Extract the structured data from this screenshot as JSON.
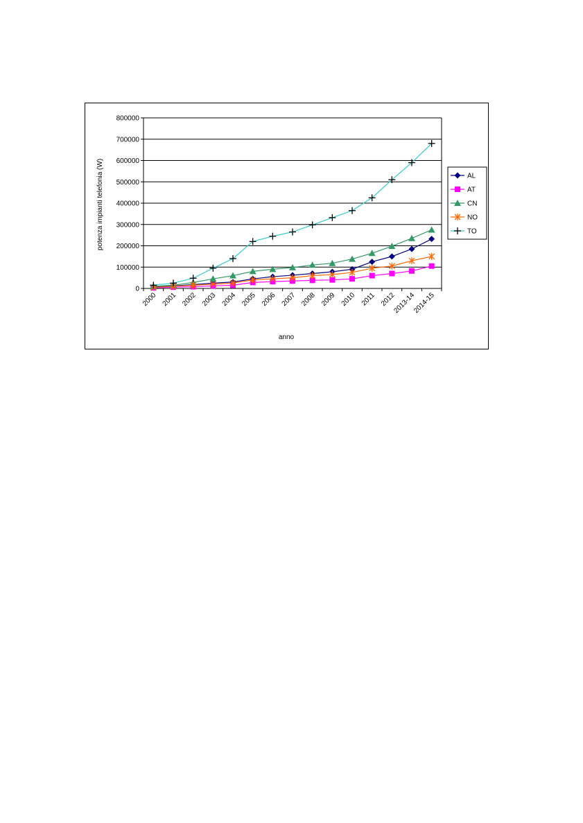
{
  "chart_data": {
    "type": "line",
    "title": "",
    "xlabel": "anno",
    "ylabel": "potenza impianti telefonia (W)",
    "categories": [
      "2000",
      "2001",
      "2002",
      "2003",
      "2004",
      "2005",
      "2006",
      "2007",
      "2008",
      "2009",
      "2010",
      "2011",
      "2012",
      "2013-14",
      "2014-15"
    ],
    "ylim": [
      0,
      800000
    ],
    "yticks": [
      "0",
      "100000",
      "200000",
      "300000",
      "400000",
      "500000",
      "600000",
      "700000",
      "800000"
    ],
    "grid": true,
    "legend_position": "right",
    "series": [
      {
        "name": "AL",
        "color": "#000080",
        "marker": "diamond",
        "values": [
          8000,
          12000,
          18000,
          25000,
          30000,
          45000,
          55000,
          62000,
          70000,
          78000,
          90000,
          125000,
          150000,
          185000,
          232000
        ]
      },
      {
        "name": "AT",
        "color": "#ff00ff",
        "marker": "square",
        "values": [
          3000,
          6000,
          8000,
          12000,
          15000,
          28000,
          32000,
          35000,
          38000,
          40000,
          45000,
          60000,
          70000,
          82000,
          105000
        ]
      },
      {
        "name": "CN",
        "color": "#339966",
        "marker": "triangle",
        "values": [
          10000,
          15000,
          28000,
          45000,
          60000,
          80000,
          90000,
          98000,
          110000,
          118000,
          138000,
          165000,
          198000,
          235000,
          275000
        ]
      },
      {
        "name": "NO",
        "color": "#ff6600",
        "marker": "asterisk",
        "values": [
          5000,
          10000,
          15000,
          20000,
          25000,
          40000,
          45000,
          50000,
          60000,
          65000,
          75000,
          95000,
          105000,
          130000,
          150000
        ]
      },
      {
        "name": "TO",
        "color": "#33cccc",
        "marker": "plus",
        "values": [
          15000,
          25000,
          48000,
          95000,
          140000,
          220000,
          245000,
          265000,
          298000,
          332000,
          365000,
          425000,
          510000,
          590000,
          680000
        ]
      }
    ]
  }
}
